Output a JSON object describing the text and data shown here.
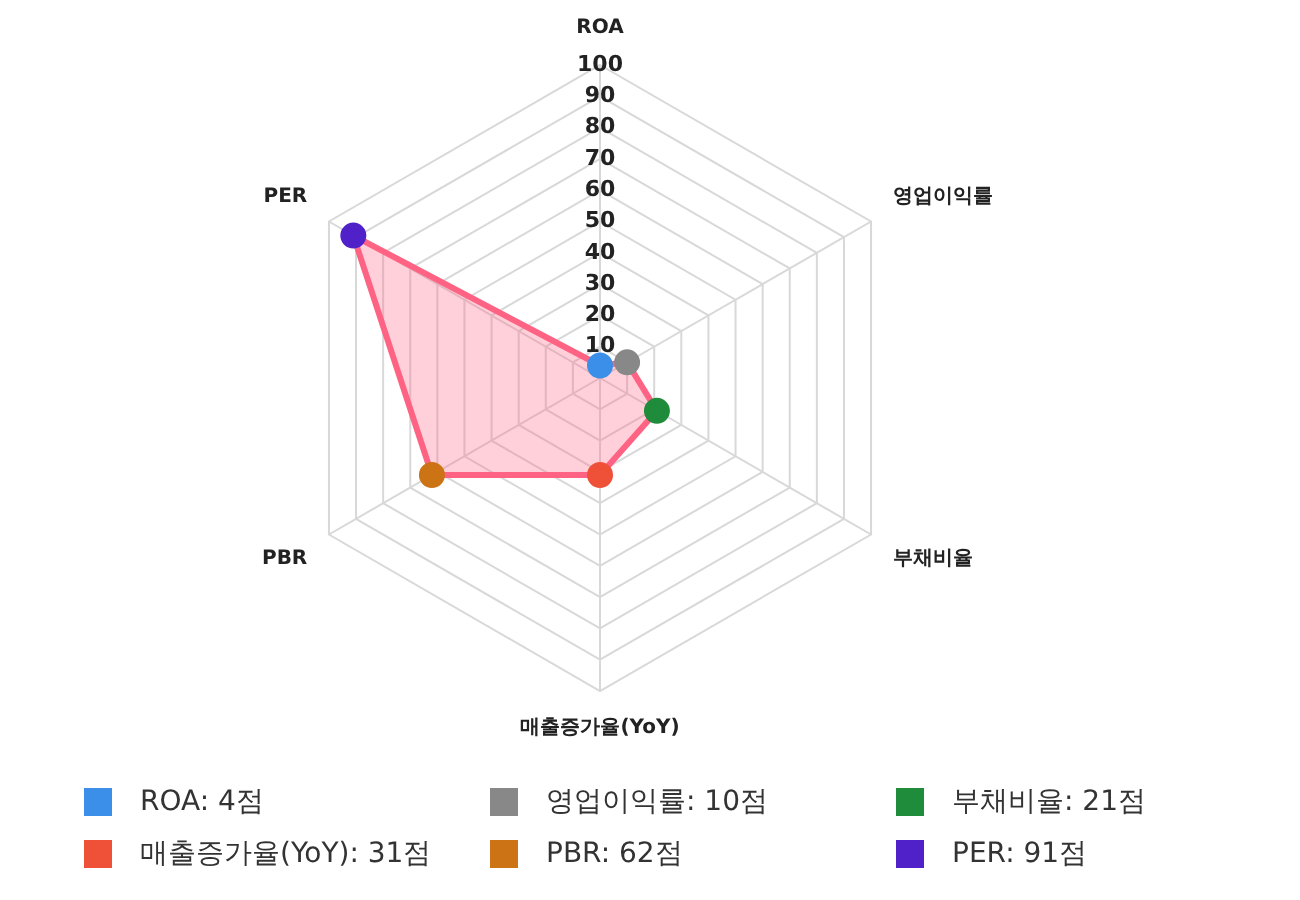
{
  "chart_data": {
    "type": "radar",
    "categories": [
      "ROA",
      "영업이익률",
      "부채비율",
      "매출증가율(YoY)",
      "PBR",
      "PER"
    ],
    "series": [
      {
        "color": "#ff6384",
        "values": [
          4,
          10,
          21,
          31,
          62,
          91
        ],
        "colors": [
          "#3b8fe8",
          "#888888",
          "#1e8c3a",
          "#ef5038",
          "#cc7415",
          "#5020c8"
        ]
      }
    ],
    "annotations": [
      "ROA: 4점",
      "영업이익률: 10점",
      "부채비율: 21점",
      "매출증가율(YoY): 31점",
      "PBR: 62점",
      "PER: 91점"
    ],
    "ylim": [
      0,
      100
    ],
    "yticks": [
      10,
      20,
      30,
      40,
      50,
      60,
      70,
      80,
      90,
      100
    ],
    "grid": true,
    "marker": "circle"
  }
}
